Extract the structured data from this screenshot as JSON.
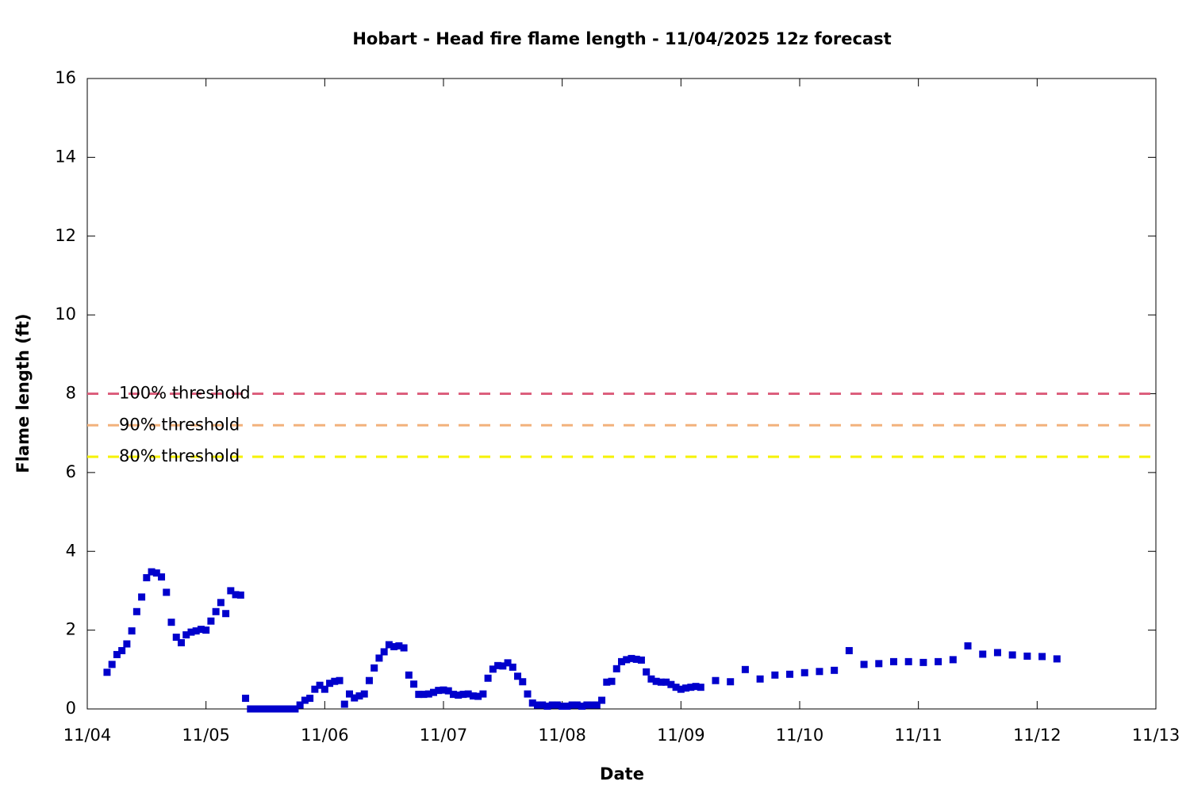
{
  "chart_data": {
    "type": "scatter",
    "title": "Hobart - Head fire flame length - 11/04/2025 12z forecast",
    "x_label": "Date",
    "y_label": "Flame length (ft)",
    "xlim": [
      0,
      216
    ],
    "xticks": [
      {
        "value": 0,
        "label": "11/04"
      },
      {
        "value": 24,
        "label": "11/05"
      },
      {
        "value": 48,
        "label": "11/06"
      },
      {
        "value": 72,
        "label": "11/07"
      },
      {
        "value": 96,
        "label": "11/08"
      },
      {
        "value": 120,
        "label": "11/09"
      },
      {
        "value": 144,
        "label": "11/10"
      },
      {
        "value": 168,
        "label": "11/11"
      },
      {
        "value": 192,
        "label": "11/12"
      },
      {
        "value": 216,
        "label": "11/13"
      }
    ],
    "ylim": [
      0,
      16
    ],
    "yticks": [
      0,
      2,
      4,
      6,
      8,
      10,
      12,
      14,
      16
    ],
    "thresholds": [
      {
        "name": "100% threshold",
        "value": 8,
        "color": "#dc5f7d"
      },
      {
        "name": "90% threshold",
        "value": 7.2,
        "color": "#f2b27c"
      },
      {
        "name": "80% threshold",
        "value": 6.4,
        "color": "#f5f200"
      }
    ],
    "series": [
      {
        "color": "#0000cc",
        "x": [
          4,
          5,
          6,
          7,
          8,
          9,
          10,
          11,
          12,
          13,
          14,
          15,
          16,
          17,
          18,
          19,
          20,
          21,
          22,
          23,
          24,
          25,
          26,
          27,
          28,
          29,
          30,
          31,
          32,
          33,
          34,
          35,
          36,
          37,
          38,
          39,
          40,
          41,
          42,
          43,
          44,
          45,
          46,
          47,
          48,
          49,
          50,
          51,
          52,
          53,
          54,
          55,
          56,
          57,
          58,
          59,
          60,
          61,
          62,
          63,
          64,
          65,
          66,
          67,
          68,
          69,
          70,
          71,
          72,
          73,
          74,
          75,
          76,
          77,
          78,
          79,
          80,
          81,
          82,
          83,
          84,
          85,
          86,
          87,
          88,
          89,
          90,
          91,
          92,
          93,
          94,
          95,
          96,
          97,
          98,
          99,
          100,
          101,
          102,
          103,
          104,
          105,
          106,
          107,
          108,
          109,
          110,
          111,
          112,
          113,
          114,
          115,
          116,
          117,
          118,
          119,
          120,
          121,
          122,
          123,
          124,
          127,
          130,
          133,
          136,
          139,
          142,
          145,
          148,
          151,
          154,
          157,
          160,
          163,
          166,
          169,
          172,
          175,
          178,
          181,
          184,
          187,
          190,
          193,
          196
        ],
        "values": [
          0.93,
          1.13,
          1.38,
          1.48,
          1.65,
          1.98,
          2.47,
          2.84,
          3.33,
          3.48,
          3.45,
          3.35,
          2.96,
          2.2,
          1.82,
          1.68,
          1.88,
          1.95,
          1.98,
          2.02,
          2.0,
          2.23,
          2.47,
          2.7,
          2.42,
          3.0,
          2.9,
          2.89,
          0.27,
          0,
          0,
          0,
          0,
          0,
          0,
          0,
          0,
          0,
          0,
          0.1,
          0.22,
          0.27,
          0.5,
          0.6,
          0.5,
          0.65,
          0.7,
          0.72,
          0.12,
          0.38,
          0.28,
          0.33,
          0.38,
          0.72,
          1.04,
          1.29,
          1.45,
          1.63,
          1.58,
          1.6,
          1.55,
          0.86,
          0.63,
          0.37,
          0.37,
          0.38,
          0.42,
          0.47,
          0.48,
          0.46,
          0.37,
          0.35,
          0.37,
          0.38,
          0.33,
          0.32,
          0.38,
          0.78,
          1.01,
          1.1,
          1.09,
          1.17,
          1.06,
          0.83,
          0.69,
          0.38,
          0.15,
          0.1,
          0.1,
          0.07,
          0.1,
          0.1,
          0.07,
          0.07,
          0.1,
          0.1,
          0.07,
          0.1,
          0.1,
          0.1,
          0.22,
          0.68,
          0.7,
          1.02,
          1.2,
          1.25,
          1.28,
          1.26,
          1.24,
          0.94,
          0.76,
          0.7,
          0.68,
          0.68,
          0.62,
          0.55,
          0.5,
          0.53,
          0.55,
          0.57,
          0.55,
          0.72,
          0.69,
          1.0,
          0.76,
          0.86,
          0.88,
          0.92,
          0.95,
          0.98,
          1.48,
          1.13,
          1.15,
          1.2,
          1.2,
          1.18,
          1.2,
          1.25,
          1.6,
          1.39,
          1.43,
          1.37,
          1.34,
          1.33,
          1.27
        ]
      }
    ]
  }
}
